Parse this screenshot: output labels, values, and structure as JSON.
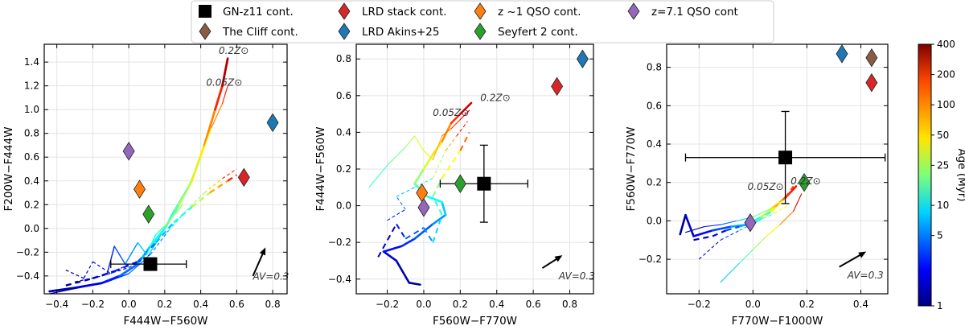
{
  "legend": {
    "placement": "top-center",
    "entries": [
      {
        "label": "GN-z11 cont.",
        "marker": "square",
        "color": "#000000"
      },
      {
        "label": "The Cliff cont.",
        "marker": "diamond",
        "color": "#8B5A45"
      },
      {
        "label": "LRD stack cont.",
        "marker": "diamond",
        "color": "#D62728"
      },
      {
        "label": "LRD Akins+25",
        "marker": "diamond",
        "color": "#1F77B4"
      },
      {
        "label": "z ~1 QSO cont.",
        "marker": "diamond",
        "color": "#FF7F0E"
      },
      {
        "label": "Seyfert 2 cont.",
        "marker": "diamond",
        "color": "#2CA02C"
      },
      {
        "label": "z=7.1 QSO cont",
        "marker": "diamond",
        "color": "#9467BD"
      }
    ]
  },
  "colorbar": {
    "label": "Age (Myr)",
    "scale": "log",
    "range": [
      1,
      400
    ],
    "ticks": [
      "1",
      "5",
      "10",
      "25",
      "50",
      "100",
      "200",
      "400"
    ]
  },
  "chart_data": [
    {
      "type": "scatter",
      "xlabel": "F444W−F560W",
      "ylabel": "F200W−F444W",
      "xlim": [
        -0.47,
        0.88
      ],
      "ylim": [
        -0.55,
        1.55
      ],
      "xticks": [
        -0.4,
        -0.2,
        0.0,
        0.2,
        0.4,
        0.6,
        0.8
      ],
      "yticks": [
        -0.4,
        -0.2,
        0.0,
        0.2,
        0.4,
        0.6,
        0.8,
        1.0,
        1.2,
        1.4
      ],
      "grid": true,
      "points": [
        {
          "name": "GN-z11 cont.",
          "x": 0.12,
          "y": -0.3,
          "xerr": [
            0.22,
            0.2
          ],
          "yerr": [
            0,
            0
          ]
        },
        {
          "name": "LRD stack cont.",
          "x": 0.64,
          "y": 0.43
        },
        {
          "name": "LRD Akins+25",
          "x": 0.8,
          "y": 0.89
        },
        {
          "name": "z ~1 QSO cont.",
          "x": 0.06,
          "y": 0.33
        },
        {
          "name": "Seyfert 2 cont.",
          "x": 0.11,
          "y": 0.12
        },
        {
          "name": "z=7.1 QSO cont",
          "x": 0.0,
          "y": 0.65
        }
      ],
      "tracks": [
        {
          "points": [
            [
              -0.44,
              -0.53
            ],
            [
              -0.3,
              -0.5
            ],
            [
              -0.15,
              -0.46
            ],
            [
              -0.05,
              -0.4
            ],
            [
              0.05,
              -0.3
            ],
            [
              0.12,
              -0.15
            ],
            [
              0.2,
              0.0
            ],
            [
              0.28,
              0.2
            ],
            [
              0.35,
              0.4
            ],
            [
              0.42,
              0.7
            ],
            [
              0.48,
              1.0
            ],
            [
              0.52,
              1.2
            ],
            [
              0.55,
              1.43
            ]
          ],
          "ages": [
            1,
            1.5,
            2,
            3,
            5,
            8,
            12,
            20,
            35,
            60,
            110,
            200,
            400
          ],
          "width": 2.8,
          "dash": ""
        },
        {
          "points": [
            [
              -0.44,
              -0.55
            ],
            [
              -0.28,
              -0.5
            ],
            [
              -0.12,
              -0.45
            ],
            [
              0.0,
              -0.38
            ],
            [
              0.1,
              -0.25
            ],
            [
              0.18,
              -0.05
            ],
            [
              0.25,
              0.15
            ],
            [
              0.33,
              0.35
            ],
            [
              0.4,
              0.6
            ],
            [
              0.46,
              0.85
            ],
            [
              0.52,
              1.05
            ],
            [
              0.55,
              1.2
            ]
          ],
          "ages": [
            1,
            1.5,
            2,
            3,
            5,
            8,
            12,
            20,
            35,
            60,
            110,
            200
          ],
          "width": 1.2,
          "dash": ""
        },
        {
          "points": [
            [
              -0.35,
              -0.48
            ],
            [
              -0.2,
              -0.42
            ],
            [
              -0.08,
              -0.36
            ],
            [
              0.05,
              -0.28
            ],
            [
              0.15,
              -0.12
            ],
            [
              0.25,
              0.05
            ],
            [
              0.35,
              0.18
            ],
            [
              0.45,
              0.3
            ],
            [
              0.55,
              0.4
            ],
            [
              0.6,
              0.45
            ]
          ],
          "ages": [
            1,
            1.5,
            2,
            3,
            5,
            8,
            15,
            40,
            100,
            200
          ],
          "width": 2.4,
          "dash": "7,5"
        },
        {
          "points": [
            [
              -0.3,
              -0.45
            ],
            [
              -0.15,
              -0.4
            ],
            [
              0.0,
              -0.33
            ],
            [
              0.12,
              -0.22
            ],
            [
              0.22,
              -0.02
            ],
            [
              0.32,
              0.15
            ],
            [
              0.42,
              0.3
            ],
            [
              0.52,
              0.42
            ],
            [
              0.6,
              0.5
            ]
          ],
          "ages": [
            1,
            1.5,
            2,
            3,
            6,
            12,
            30,
            80,
            200
          ],
          "width": 1.2,
          "dash": "4,3"
        },
        {
          "points": [
            [
              -0.12,
              -0.38
            ],
            [
              -0.08,
              -0.15
            ],
            [
              -0.02,
              -0.3
            ],
            [
              0.05,
              -0.12
            ],
            [
              0.1,
              -0.22
            ],
            [
              0.15,
              -0.05
            ],
            [
              0.2,
              0.02
            ],
            [
              0.3,
              0.2
            ]
          ],
          "ages": [
            2,
            3,
            4,
            6,
            8,
            12,
            18,
            30
          ],
          "width": 1.4,
          "dash": ""
        },
        {
          "points": [
            [
              -0.35,
              -0.35
            ],
            [
              -0.25,
              -0.42
            ],
            [
              -0.2,
              -0.28
            ],
            [
              -0.1,
              -0.38
            ],
            [
              0.0,
              -0.3
            ]
          ],
          "ages": [
            1,
            1.3,
            1.6,
            2,
            3
          ],
          "width": 1.2,
          "dash": "4,3"
        }
      ],
      "annotations": [
        {
          "text": "0.2Z⊙",
          "x": 0.5,
          "y": 1.47
        },
        {
          "text": "0.05Z⊙",
          "x": 0.43,
          "y": 1.2
        },
        {
          "text": "AV=0.3",
          "x": 0.69,
          "y": -0.43
        }
      ],
      "arrow": {
        "from": [
          0.69,
          -0.4
        ],
        "to": [
          0.76,
          -0.16
        ]
      }
    },
    {
      "type": "scatter",
      "xlabel": "F560W−F770W",
      "ylabel": "F444W−F560W",
      "xlim": [
        -0.37,
        0.93
      ],
      "ylim": [
        -0.48,
        0.88
      ],
      "xticks": [
        -0.2,
        0.0,
        0.2,
        0.4,
        0.6,
        0.8
      ],
      "yticks": [
        -0.4,
        -0.2,
        0.0,
        0.2,
        0.4,
        0.6,
        0.8
      ],
      "grid": true,
      "points": [
        {
          "name": "GN-z11 cont.",
          "x": 0.33,
          "y": 0.12,
          "xerr": [
            0.24,
            0.24
          ],
          "yerr": [
            0.21,
            0.21
          ]
        },
        {
          "name": "LRD stack cont.",
          "x": 0.73,
          "y": 0.65
        },
        {
          "name": "LRD Akins+25",
          "x": 0.87,
          "y": 0.8
        },
        {
          "name": "z ~1 QSO cont.",
          "x": -0.01,
          "y": 0.07
        },
        {
          "name": "Seyfert 2 cont.",
          "x": 0.2,
          "y": 0.12
        },
        {
          "name": "z=7.1 QSO cont",
          "x": 0.0,
          "y": -0.01
        }
      ],
      "tracks": [
        {
          "points": [
            [
              -0.02,
              -0.43
            ],
            [
              -0.08,
              -0.42
            ],
            [
              -0.15,
              -0.3
            ],
            [
              -0.22,
              -0.25
            ],
            [
              -0.12,
              -0.22
            ],
            [
              -0.05,
              -0.18
            ],
            [
              0.05,
              -0.1
            ],
            [
              0.12,
              -0.05
            ],
            [
              0.1,
              0.02
            ],
            [
              0.02,
              0.05
            ],
            [
              -0.05,
              0.12
            ],
            [
              0.0,
              0.2
            ],
            [
              0.05,
              0.28
            ],
            [
              0.1,
              0.35
            ],
            [
              0.15,
              0.45
            ],
            [
              0.2,
              0.5
            ],
            [
              0.26,
              0.56
            ]
          ],
          "ages": [
            1,
            1.2,
            1.5,
            2,
            2.5,
            3,
            4,
            6,
            8,
            12,
            18,
            25,
            40,
            60,
            100,
            180,
            300
          ],
          "width": 2.6,
          "dash": ""
        },
        {
          "points": [
            [
              -0.3,
              0.1
            ],
            [
              -0.2,
              0.22
            ],
            [
              -0.1,
              0.32
            ],
            [
              -0.05,
              0.38
            ],
            [
              0.0,
              0.3
            ],
            [
              0.05,
              0.25
            ],
            [
              0.1,
              0.38
            ],
            [
              0.15,
              0.42
            ],
            [
              0.2,
              0.47
            ],
            [
              0.25,
              0.52
            ]
          ],
          "ages": [
            10,
            15,
            20,
            30,
            40,
            55,
            80,
            120,
            180,
            300
          ],
          "width": 1.1,
          "dash": ""
        },
        {
          "points": [
            [
              -0.25,
              -0.28
            ],
            [
              -0.15,
              -0.1
            ],
            [
              -0.1,
              -0.18
            ],
            [
              0.0,
              -0.12
            ],
            [
              0.05,
              -0.2
            ],
            [
              0.1,
              -0.05
            ],
            [
              0.05,
              0.05
            ],
            [
              0.1,
              0.15
            ],
            [
              0.2,
              0.3
            ],
            [
              0.25,
              0.4
            ]
          ],
          "ages": [
            1,
            2,
            3,
            4,
            6,
            9,
            14,
            25,
            60,
            150
          ],
          "width": 2.0,
          "dash": "7,5"
        },
        {
          "points": [
            [
              -0.2,
              -0.08
            ],
            [
              -0.1,
              -0.02
            ],
            [
              -0.15,
              0.05
            ],
            [
              -0.05,
              0.1
            ],
            [
              0.05,
              0.15
            ],
            [
              0.12,
              0.3
            ],
            [
              0.18,
              0.38
            ],
            [
              0.24,
              0.46
            ]
          ],
          "ages": [
            2,
            3,
            5,
            8,
            15,
            40,
            100,
            250
          ],
          "width": 1.1,
          "dash": "4,3"
        }
      ],
      "annotations": [
        {
          "text": "0.2Z⊙",
          "x": 0.31,
          "y": 0.57
        },
        {
          "text": "0.05Z⊙",
          "x": 0.05,
          "y": 0.49
        },
        {
          "text": "AV=0.3",
          "x": 0.74,
          "y": -0.4
        }
      ],
      "arrow": {
        "from": [
          0.65,
          -0.34
        ],
        "to": [
          0.76,
          -0.27
        ]
      }
    },
    {
      "type": "scatter",
      "xlabel": "F770W−F1000W",
      "ylabel": "F560W−F770W",
      "xlim": [
        -0.32,
        0.5
      ],
      "ylim": [
        -0.38,
        0.92
      ],
      "xticks": [
        -0.2,
        0.0,
        0.2,
        0.4
      ],
      "yticks": [
        -0.2,
        0.0,
        0.2,
        0.4,
        0.6,
        0.8
      ],
      "grid": true,
      "points": [
        {
          "name": "GN-z11 cont.",
          "x": 0.12,
          "y": 0.33,
          "xerr": [
            0.37,
            0.37
          ],
          "yerr": [
            0.24,
            0.24
          ]
        },
        {
          "name": "The Cliff cont.",
          "x": 0.44,
          "y": 0.85
        },
        {
          "name": "LRD stack cont.",
          "x": 0.44,
          "y": 0.72
        },
        {
          "name": "LRD Akins+25",
          "x": 0.33,
          "y": 0.87
        },
        {
          "name": "Seyfert 2 cont.",
          "x": 0.19,
          "y": 0.2
        },
        {
          "name": "z=7.1 QSO cont",
          "x": -0.01,
          "y": -0.01
        }
      ],
      "tracks": [
        {
          "points": [
            [
              -0.27,
              -0.07
            ],
            [
              -0.25,
              0.03
            ],
            [
              -0.22,
              -0.08
            ],
            [
              -0.15,
              -0.05
            ],
            [
              -0.08,
              -0.03
            ],
            [
              -0.02,
              -0.02
            ],
            [
              0.03,
              0.02
            ],
            [
              0.08,
              0.07
            ],
            [
              0.12,
              0.12
            ],
            [
              0.16,
              0.18
            ]
          ],
          "ages": [
            1,
            1.3,
            1.7,
            2.5,
            4,
            7,
            15,
            40,
            100,
            250
          ],
          "width": 2.6,
          "dash": ""
        },
        {
          "points": [
            [
              -0.25,
              -0.06
            ],
            [
              -0.18,
              -0.03
            ],
            [
              -0.12,
              -0.02
            ],
            [
              -0.06,
              0.0
            ],
            [
              0.0,
              0.02
            ],
            [
              0.06,
              0.06
            ],
            [
              0.1,
              0.1
            ],
            [
              0.14,
              0.15
            ]
          ],
          "ages": [
            1,
            2,
            3,
            5,
            10,
            25,
            80,
            200
          ],
          "width": 1.1,
          "dash": ""
        },
        {
          "points": [
            [
              -0.22,
              -0.1
            ],
            [
              -0.15,
              -0.08
            ],
            [
              -0.1,
              -0.05
            ],
            [
              -0.05,
              -0.03
            ],
            [
              0.02,
              0.0
            ],
            [
              0.07,
              0.05
            ],
            [
              0.12,
              0.12
            ],
            [
              0.15,
              0.18
            ]
          ],
          "ages": [
            1,
            1.5,
            2.5,
            4,
            8,
            20,
            60,
            200
          ],
          "width": 2.2,
          "dash": "7,5"
        },
        {
          "points": [
            [
              -0.12,
              -0.32
            ],
            [
              -0.05,
              -0.22
            ],
            [
              0.0,
              -0.15
            ],
            [
              0.05,
              -0.08
            ],
            [
              0.1,
              -0.02
            ],
            [
              0.15,
              0.05
            ],
            [
              0.18,
              0.14
            ]
          ],
          "ages": [
            5,
            10,
            18,
            30,
            60,
            120,
            300
          ],
          "width": 1.1,
          "dash": ""
        },
        {
          "points": [
            [
              -0.2,
              -0.2
            ],
            [
              -0.12,
              -0.1
            ],
            [
              -0.05,
              -0.05
            ],
            [
              0.02,
              0.0
            ],
            [
              0.08,
              0.04
            ],
            [
              0.13,
              0.08
            ]
          ],
          "ages": [
            1,
            2,
            4,
            8,
            20,
            60
          ],
          "width": 1.1,
          "dash": "4,3"
        }
      ],
      "annotations": [
        {
          "text": "0.2Z⊙",
          "x": 0.14,
          "y": 0.19
        },
        {
          "text": "0.05Z⊙",
          "x": -0.02,
          "y": 0.16
        },
        {
          "text": "AV=0.3",
          "x": 0.35,
          "y": -0.3
        }
      ],
      "arrow": {
        "from": [
          0.32,
          -0.24
        ],
        "to": [
          0.42,
          -0.16
        ]
      }
    }
  ]
}
